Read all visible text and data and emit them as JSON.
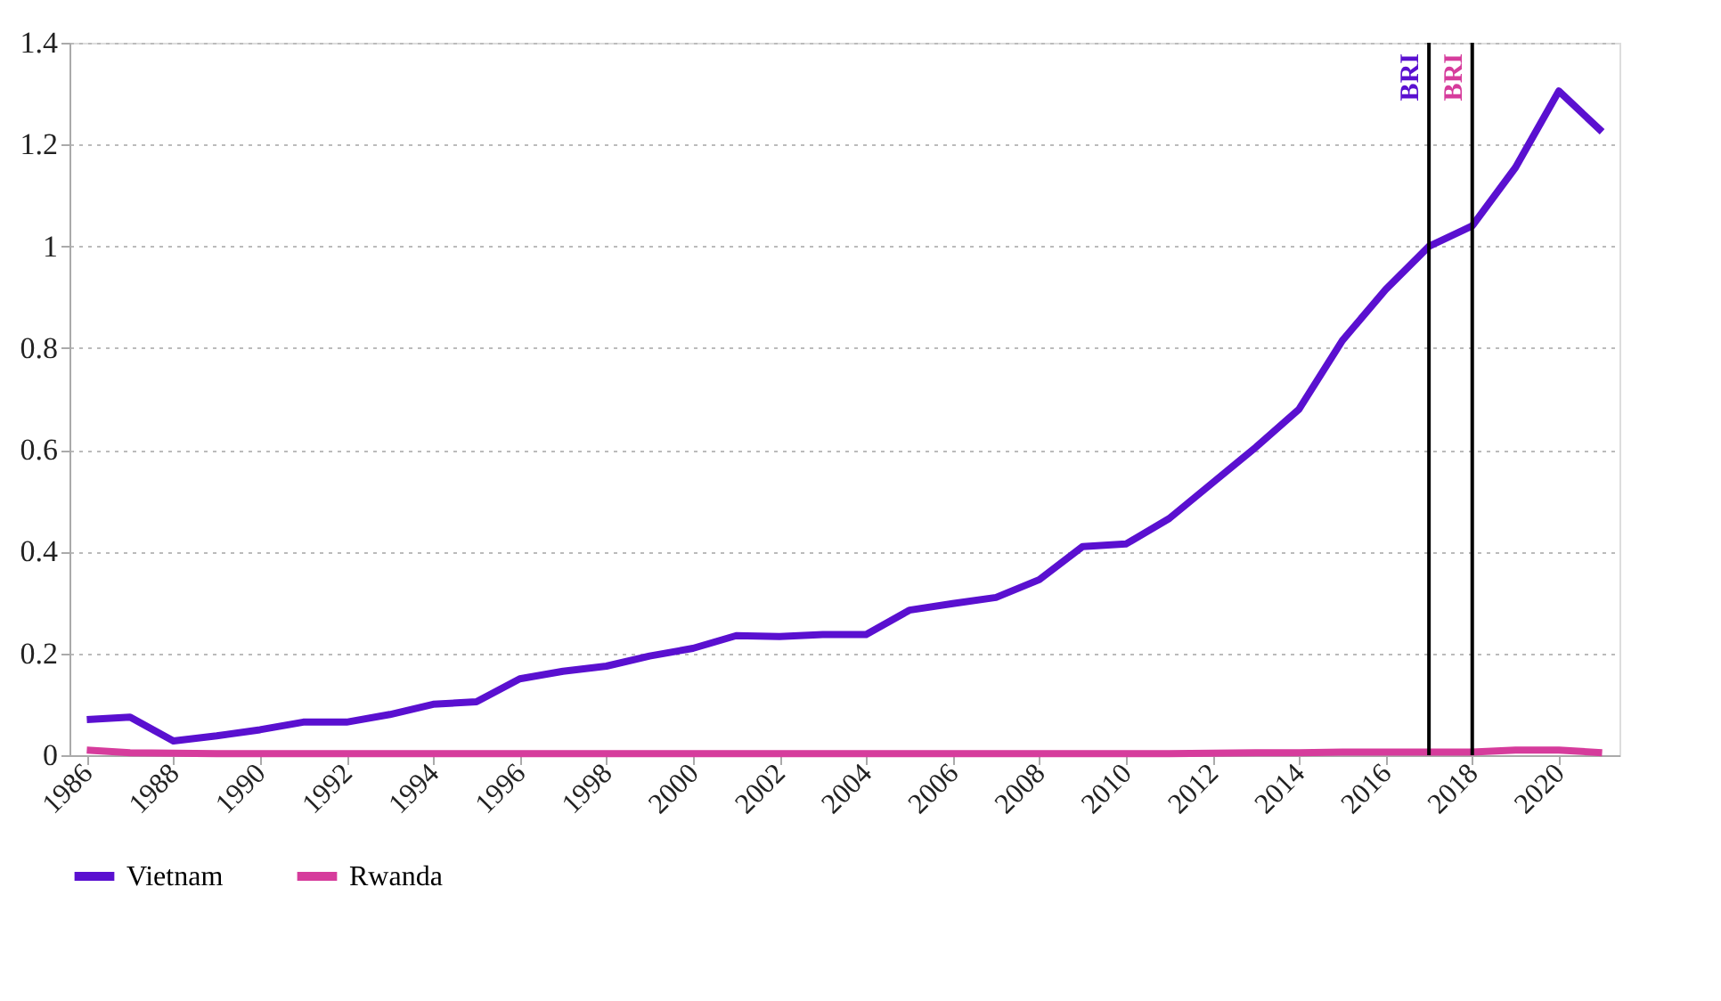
{
  "chart_data": {
    "type": "line",
    "x": [
      1986,
      1987,
      1988,
      1989,
      1990,
      1991,
      1992,
      1993,
      1994,
      1995,
      1996,
      1997,
      1998,
      1999,
      2000,
      2001,
      2002,
      2003,
      2004,
      2005,
      2006,
      2007,
      2008,
      2009,
      2010,
      2011,
      2012,
      2013,
      2014,
      2015,
      2016,
      2017,
      2018,
      2019,
      2020,
      2021
    ],
    "series": [
      {
        "name": "Vietnam",
        "color": "#5a10d0",
        "values": [
          0.07,
          0.075,
          0.028,
          0.038,
          0.05,
          0.065,
          0.065,
          0.08,
          0.1,
          0.105,
          0.15,
          0.165,
          0.175,
          0.195,
          0.21,
          0.235,
          0.233,
          0.237,
          0.237,
          0.285,
          0.298,
          0.31,
          0.345,
          0.41,
          0.415,
          0.465,
          0.535,
          0.605,
          0.68,
          0.815,
          0.915,
          1.0,
          1.04,
          1.155,
          1.305,
          1.225
        ]
      },
      {
        "name": "Rwanda",
        "color": "#d63c9c",
        "values": [
          0.01,
          0.005,
          0.004,
          0.003,
          0.003,
          0.003,
          0.003,
          0.003,
          0.003,
          0.003,
          0.003,
          0.003,
          0.003,
          0.003,
          0.003,
          0.003,
          0.003,
          0.003,
          0.003,
          0.003,
          0.003,
          0.003,
          0.003,
          0.003,
          0.003,
          0.003,
          0.004,
          0.005,
          0.005,
          0.006,
          0.006,
          0.006,
          0.006,
          0.01,
          0.01,
          0.005
        ]
      }
    ],
    "xlim": [
      1985.6,
      2021.4
    ],
    "xticks": [
      1986,
      1988,
      1990,
      1992,
      1994,
      1996,
      1998,
      2000,
      2002,
      2004,
      2006,
      2008,
      2010,
      2012,
      2014,
      2016,
      2018,
      2020
    ],
    "ylim": [
      0,
      1.4
    ],
    "yticks": [
      0,
      0.2,
      0.4,
      0.6,
      0.8,
      1,
      1.2,
      1.4
    ],
    "ref_lines": [
      {
        "axis": "x",
        "value": 2017,
        "label": "BRI",
        "color": "#000000"
      },
      {
        "axis": "x",
        "value": 2018,
        "label": "BRI",
        "color": "#000000"
      }
    ],
    "grid": "y",
    "legend": "bottom",
    "marker": "none",
    "line_style": "solid"
  }
}
